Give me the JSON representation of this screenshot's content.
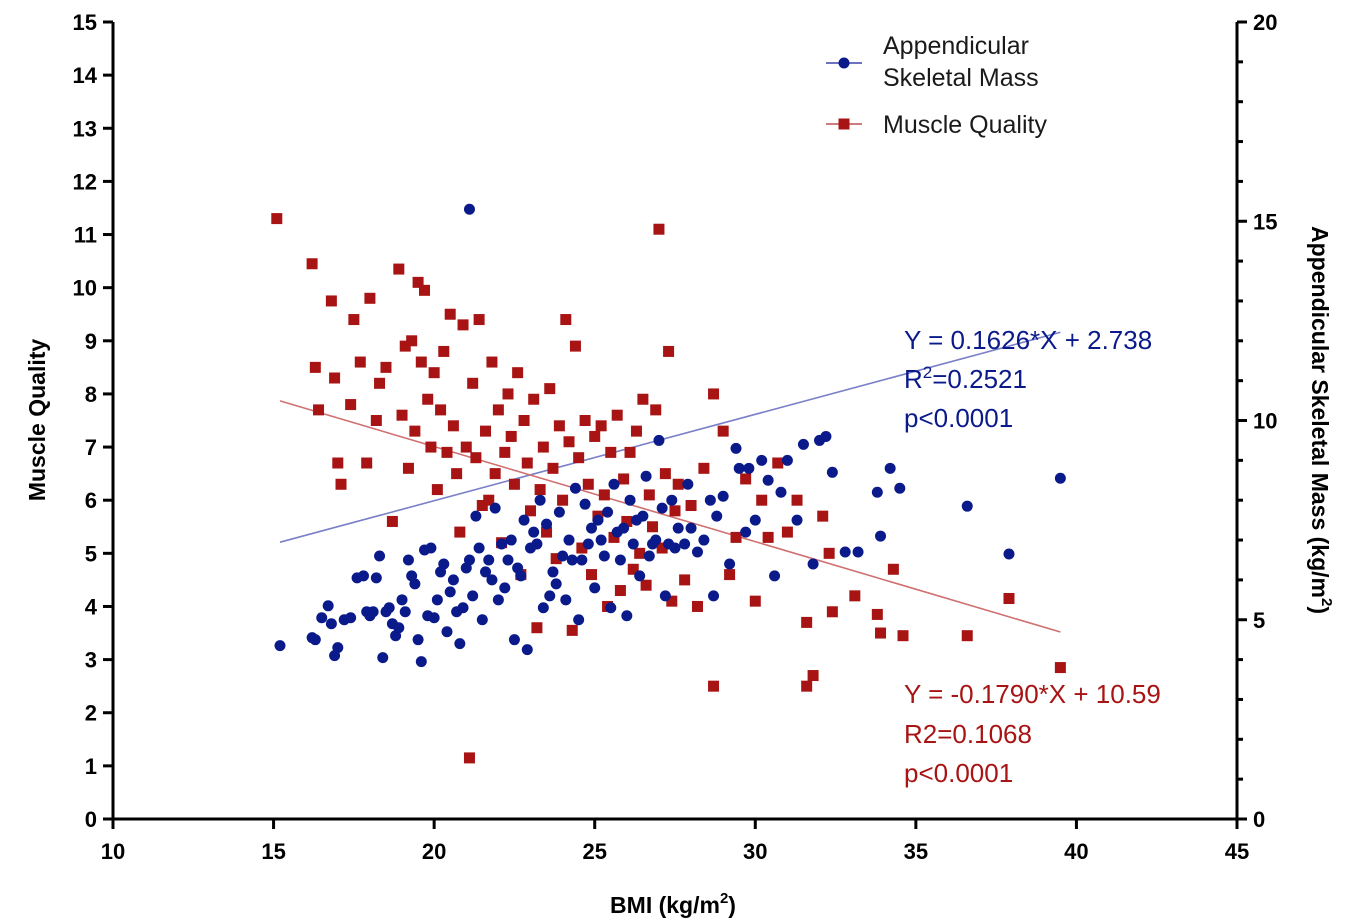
{
  "chart_data": {
    "type": "scatter",
    "title": "",
    "xlabel_base": "BMI (kg/m",
    "xlabel_sup": "2",
    "xlabel_end": ")",
    "ylabel_left": "Muscle  Quality",
    "ylabel_right_base": "Appendicular Skeletal Mass (kg/m",
    "ylabel_right_sup": "2",
    "ylabel_right_end": ")",
    "xlim": [
      10,
      45
    ],
    "ylim_left": [
      0,
      15
    ],
    "ylim_right": [
      0,
      20
    ],
    "xticks": [
      10,
      15,
      20,
      25,
      30,
      35,
      40,
      45
    ],
    "yticks_left": [
      0,
      1,
      2,
      3,
      4,
      5,
      6,
      7,
      8,
      9,
      10,
      11,
      12,
      13,
      14,
      15
    ],
    "yticks_right": [
      0,
      5,
      10,
      15,
      20
    ],
    "legend_position": "top-right",
    "series": [
      {
        "name_line1": "Appendicular",
        "name_line2": "Skeletal  Mass",
        "marker": "circle",
        "color": "#0a1a8a",
        "axis": "right",
        "fit": {
          "slope": 0.1626,
          "intercept": 2.738,
          "x_range": [
            15.2,
            39.5
          ]
        },
        "equation": "Y = 0.1626*X + 2.738",
        "r2_base": "R",
        "r2_sup": "2",
        "r2_value": "=0.2521",
        "p_value": "p<0.0001",
        "points": [
          [
            15.2,
            4.35
          ],
          [
            16.2,
            4.55
          ],
          [
            16.3,
            4.5
          ],
          [
            16.5,
            5.05
          ],
          [
            16.7,
            5.35
          ],
          [
            16.8,
            4.9
          ],
          [
            16.9,
            4.1
          ],
          [
            17.0,
            4.3
          ],
          [
            17.2,
            5.0
          ],
          [
            17.4,
            5.05
          ],
          [
            17.6,
            6.05
          ],
          [
            17.8,
            6.1
          ],
          [
            17.9,
            5.2
          ],
          [
            18.0,
            5.1
          ],
          [
            18.1,
            5.2
          ],
          [
            18.2,
            6.05
          ],
          [
            18.3,
            6.6
          ],
          [
            18.4,
            4.05
          ],
          [
            18.5,
            5.2
          ],
          [
            18.6,
            5.3
          ],
          [
            18.7,
            4.9
          ],
          [
            18.8,
            4.6
          ],
          [
            18.9,
            4.8
          ],
          [
            19.0,
            5.5
          ],
          [
            19.1,
            5.2
          ],
          [
            19.2,
            6.5
          ],
          [
            19.3,
            6.1
          ],
          [
            19.4,
            5.9
          ],
          [
            19.5,
            4.5
          ],
          [
            19.6,
            3.95
          ],
          [
            19.7,
            6.75
          ],
          [
            19.8,
            5.1
          ],
          [
            19.9,
            6.8
          ],
          [
            20.0,
            5.05
          ],
          [
            20.1,
            5.5
          ],
          [
            20.2,
            6.2
          ],
          [
            20.3,
            6.4
          ],
          [
            20.4,
            4.7
          ],
          [
            20.5,
            5.7
          ],
          [
            20.6,
            6.0
          ],
          [
            20.7,
            5.2
          ],
          [
            20.8,
            4.4
          ],
          [
            20.9,
            5.3
          ],
          [
            21.0,
            6.3
          ],
          [
            21.1,
            15.3
          ],
          [
            21.1,
            6.5
          ],
          [
            21.2,
            5.6
          ],
          [
            21.3,
            7.6
          ],
          [
            21.4,
            6.8
          ],
          [
            21.5,
            5.0
          ],
          [
            21.6,
            6.2
          ],
          [
            21.7,
            6.5
          ],
          [
            21.8,
            6.0
          ],
          [
            21.9,
            7.8
          ],
          [
            22.0,
            5.5
          ],
          [
            22.1,
            6.9
          ],
          [
            22.2,
            5.8
          ],
          [
            22.3,
            6.5
          ],
          [
            22.4,
            7.0
          ],
          [
            22.5,
            4.5
          ],
          [
            22.6,
            6.3
          ],
          [
            22.7,
            6.1
          ],
          [
            22.8,
            7.5
          ],
          [
            22.9,
            4.25
          ],
          [
            23.0,
            6.8
          ],
          [
            23.1,
            7.2
          ],
          [
            23.2,
            6.9
          ],
          [
            23.3,
            8.0
          ],
          [
            23.4,
            5.3
          ],
          [
            23.5,
            7.4
          ],
          [
            23.6,
            5.6
          ],
          [
            23.7,
            6.2
          ],
          [
            23.8,
            5.9
          ],
          [
            23.9,
            7.7
          ],
          [
            24.0,
            6.6
          ],
          [
            24.1,
            5.5
          ],
          [
            24.2,
            7.0
          ],
          [
            24.3,
            6.5
          ],
          [
            24.4,
            8.3
          ],
          [
            24.5,
            5.0
          ],
          [
            24.6,
            6.5
          ],
          [
            24.7,
            7.9
          ],
          [
            24.8,
            6.9
          ],
          [
            24.9,
            7.3
          ],
          [
            25.0,
            5.8
          ],
          [
            25.1,
            7.5
          ],
          [
            25.2,
            7.0
          ],
          [
            25.3,
            6.6
          ],
          [
            25.4,
            7.7
          ],
          [
            25.5,
            5.3
          ],
          [
            25.6,
            8.4
          ],
          [
            25.7,
            7.2
          ],
          [
            25.8,
            6.5
          ],
          [
            25.9,
            7.3
          ],
          [
            26.0,
            5.1
          ],
          [
            26.1,
            8.0
          ],
          [
            26.2,
            6.9
          ],
          [
            26.3,
            7.5
          ],
          [
            26.4,
            6.1
          ],
          [
            26.5,
            7.6
          ],
          [
            26.6,
            8.6
          ],
          [
            26.7,
            6.6
          ],
          [
            26.8,
            6.9
          ],
          [
            26.9,
            7.0
          ],
          [
            27.0,
            9.5
          ],
          [
            27.1,
            7.8
          ],
          [
            27.2,
            5.6
          ],
          [
            27.3,
            6.9
          ],
          [
            27.4,
            8.0
          ],
          [
            27.5,
            6.8
          ],
          [
            27.6,
            7.3
          ],
          [
            27.8,
            6.9
          ],
          [
            27.9,
            8.4
          ],
          [
            28.0,
            7.3
          ],
          [
            28.2,
            6.7
          ],
          [
            28.4,
            7.0
          ],
          [
            28.6,
            8.0
          ],
          [
            28.7,
            5.6
          ],
          [
            28.8,
            7.6
          ],
          [
            29.0,
            8.1
          ],
          [
            29.2,
            6.4
          ],
          [
            29.4,
            9.3
          ],
          [
            29.5,
            8.8
          ],
          [
            29.7,
            7.2
          ],
          [
            29.8,
            8.8
          ],
          [
            30.0,
            7.5
          ],
          [
            30.2,
            9.0
          ],
          [
            30.4,
            8.5
          ],
          [
            30.6,
            6.1
          ],
          [
            30.8,
            8.2
          ],
          [
            31.0,
            9.0
          ],
          [
            31.3,
            7.5
          ],
          [
            31.5,
            9.4
          ],
          [
            31.8,
            6.4
          ],
          [
            32.0,
            9.5
          ],
          [
            32.2,
            9.6
          ],
          [
            32.4,
            8.7
          ],
          [
            32.8,
            6.7
          ],
          [
            33.2,
            6.7
          ],
          [
            33.8,
            8.2
          ],
          [
            33.9,
            7.1
          ],
          [
            34.2,
            8.8
          ],
          [
            34.5,
            8.3
          ],
          [
            36.6,
            7.85
          ],
          [
            37.9,
            6.65
          ],
          [
            39.5,
            8.55
          ]
        ]
      },
      {
        "name": "Muscle Quality",
        "marker": "square",
        "color": "#a81414",
        "axis": "left",
        "fit": {
          "slope": -0.179,
          "intercept": 10.59,
          "x_range": [
            15.2,
            39.5
          ]
        },
        "equation": "Y = -0.1790*X + 10.59",
        "r2_label": "R2=0.1068",
        "p_value": "p<0.0001",
        "points": [
          [
            15.1,
            11.3
          ],
          [
            16.2,
            10.45
          ],
          [
            16.3,
            8.5
          ],
          [
            16.4,
            7.7
          ],
          [
            16.8,
            9.75
          ],
          [
            16.9,
            8.3
          ],
          [
            17.0,
            6.7
          ],
          [
            17.1,
            6.3
          ],
          [
            17.4,
            7.8
          ],
          [
            17.5,
            9.4
          ],
          [
            17.7,
            8.6
          ],
          [
            17.9,
            6.7
          ],
          [
            18.0,
            9.8
          ],
          [
            18.2,
            7.5
          ],
          [
            18.3,
            8.2
          ],
          [
            18.5,
            8.5
          ],
          [
            18.7,
            5.6
          ],
          [
            18.9,
            10.35
          ],
          [
            19.0,
            7.6
          ],
          [
            19.1,
            8.9
          ],
          [
            19.2,
            6.6
          ],
          [
            19.3,
            9.0
          ],
          [
            19.4,
            7.3
          ],
          [
            19.5,
            10.1
          ],
          [
            19.6,
            8.6
          ],
          [
            19.7,
            9.95
          ],
          [
            19.8,
            7.9
          ],
          [
            19.9,
            7.0
          ],
          [
            20.0,
            8.4
          ],
          [
            20.1,
            6.2
          ],
          [
            20.2,
            7.7
          ],
          [
            20.3,
            8.8
          ],
          [
            20.4,
            6.9
          ],
          [
            20.5,
            9.5
          ],
          [
            20.6,
            7.4
          ],
          [
            20.7,
            6.5
          ],
          [
            20.8,
            5.4
          ],
          [
            20.9,
            9.3
          ],
          [
            21.0,
            7.0
          ],
          [
            21.1,
            1.15
          ],
          [
            21.2,
            8.2
          ],
          [
            21.3,
            6.8
          ],
          [
            21.4,
            9.4
          ],
          [
            21.5,
            5.9
          ],
          [
            21.6,
            7.3
          ],
          [
            21.7,
            6.0
          ],
          [
            21.8,
            8.6
          ],
          [
            21.9,
            6.5
          ],
          [
            22.0,
            7.7
          ],
          [
            22.1,
            5.2
          ],
          [
            22.2,
            6.9
          ],
          [
            22.3,
            8.0
          ],
          [
            22.4,
            7.2
          ],
          [
            22.5,
            6.3
          ],
          [
            22.6,
            8.4
          ],
          [
            22.7,
            4.6
          ],
          [
            22.8,
            7.5
          ],
          [
            22.9,
            6.7
          ],
          [
            23.0,
            5.8
          ],
          [
            23.1,
            7.9
          ],
          [
            23.2,
            3.6
          ],
          [
            23.3,
            6.2
          ],
          [
            23.4,
            7.0
          ],
          [
            23.5,
            5.4
          ],
          [
            23.6,
            8.1
          ],
          [
            23.7,
            6.6
          ],
          [
            23.8,
            4.9
          ],
          [
            23.9,
            7.4
          ],
          [
            24.0,
            6.0
          ],
          [
            24.1,
            9.4
          ],
          [
            24.2,
            7.1
          ],
          [
            24.3,
            3.55
          ],
          [
            24.4,
            8.9
          ],
          [
            24.5,
            6.8
          ],
          [
            24.6,
            5.1
          ],
          [
            24.7,
            7.5
          ],
          [
            24.8,
            6.3
          ],
          [
            24.9,
            4.6
          ],
          [
            25.0,
            7.2
          ],
          [
            25.1,
            5.7
          ],
          [
            25.2,
            7.4
          ],
          [
            25.3,
            6.1
          ],
          [
            25.4,
            4.0
          ],
          [
            25.5,
            6.9
          ],
          [
            25.6,
            5.3
          ],
          [
            25.7,
            7.6
          ],
          [
            25.8,
            4.3
          ],
          [
            25.9,
            6.4
          ],
          [
            26.0,
            5.6
          ],
          [
            26.1,
            6.9
          ],
          [
            26.2,
            4.7
          ],
          [
            26.3,
            7.3
          ],
          [
            26.4,
            5.0
          ],
          [
            26.5,
            7.9
          ],
          [
            26.6,
            4.4
          ],
          [
            26.7,
            6.1
          ],
          [
            26.8,
            5.5
          ],
          [
            26.9,
            7.7
          ],
          [
            27.0,
            11.1
          ],
          [
            27.1,
            5.1
          ],
          [
            27.2,
            6.5
          ],
          [
            27.3,
            8.8
          ],
          [
            27.4,
            4.1
          ],
          [
            27.5,
            5.8
          ],
          [
            27.6,
            6.3
          ],
          [
            27.8,
            4.5
          ],
          [
            28.0,
            5.9
          ],
          [
            28.2,
            4.0
          ],
          [
            28.4,
            6.6
          ],
          [
            28.7,
            2.5
          ],
          [
            28.7,
            8.0
          ],
          [
            29.0,
            7.3
          ],
          [
            29.2,
            4.6
          ],
          [
            29.4,
            5.3
          ],
          [
            29.7,
            6.4
          ],
          [
            30.0,
            4.1
          ],
          [
            30.2,
            6.0
          ],
          [
            30.4,
            5.3
          ],
          [
            30.7,
            6.7
          ],
          [
            31.0,
            5.4
          ],
          [
            31.3,
            6.0
          ],
          [
            31.6,
            3.7
          ],
          [
            31.6,
            2.5
          ],
          [
            31.8,
            2.7
          ],
          [
            32.1,
            5.7
          ],
          [
            32.3,
            5.0
          ],
          [
            32.4,
            3.9
          ],
          [
            33.1,
            4.2
          ],
          [
            33.8,
            3.85
          ],
          [
            33.9,
            3.5
          ],
          [
            34.3,
            4.7
          ],
          [
            34.6,
            3.45
          ],
          [
            36.6,
            3.45
          ],
          [
            37.9,
            4.15
          ],
          [
            39.5,
            2.85
          ]
        ]
      }
    ]
  }
}
